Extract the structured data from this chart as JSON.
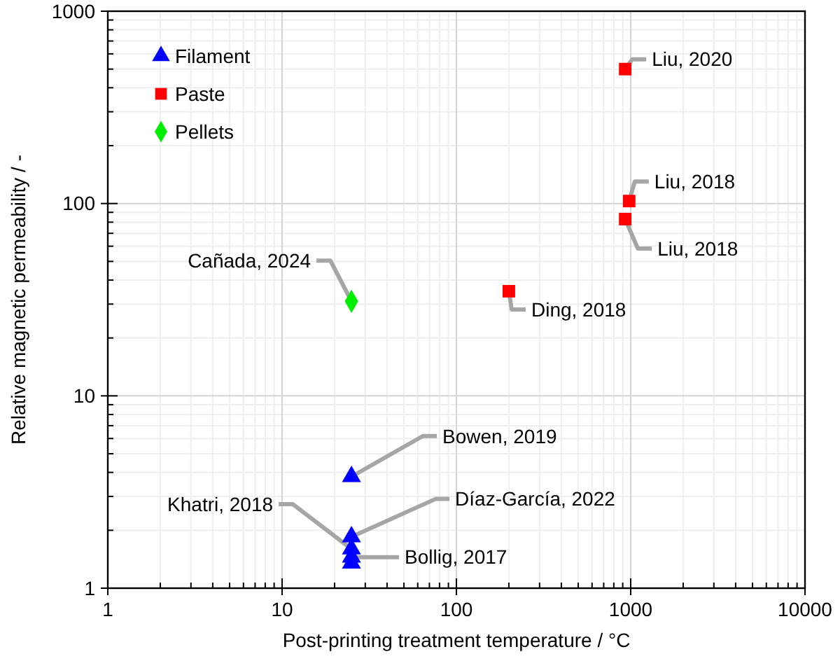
{
  "chart_data": {
    "type": "scatter",
    "xlabel": "Post-printing treatment temperature / °C",
    "ylabel": "Relative magnetic permeability / -",
    "log": "xy",
    "grid": true,
    "legend": "top left",
    "xlim": [
      1,
      10000
    ],
    "xticks": [
      1,
      10,
      100,
      1000,
      10000
    ],
    "ylim": [
      1,
      1000
    ],
    "yticks": [
      1,
      10,
      100,
      1000
    ],
    "series": [
      {
        "name": "Filament",
        "color": "#0000ff",
        "marker": "triangle",
        "x": [
          25,
          25,
          25,
          25,
          25
        ],
        "values": [
          3.8,
          1.85,
          1.6,
          1.45,
          1.35
        ]
      },
      {
        "name": "Paste",
        "color": "#ff0000",
        "marker": "square",
        "x": [
          930,
          980,
          930,
          200
        ],
        "values": [
          500,
          103,
          83,
          35
        ]
      },
      {
        "name": "Pellets",
        "color": "#00ee00",
        "marker": "diamond",
        "x": [
          25
        ],
        "values": [
          31
        ]
      }
    ],
    "annotations": [
      {
        "text": "Liu, 2020",
        "x": 930,
        "y": 500
      },
      {
        "text": "Liu, 2018",
        "x": 980,
        "y": 103
      },
      {
        "text": "Liu, 2018",
        "x": 930,
        "y": 83
      },
      {
        "text": "Ding, 2018",
        "x": 200,
        "y": 35
      },
      {
        "text": "Cañada, 2024",
        "x": 25,
        "y": 31
      },
      {
        "text": "Bowen, 2019",
        "x": 25,
        "y": 3.8
      },
      {
        "text": "Díaz-García, 2022",
        "x": 25,
        "y": 1.85
      },
      {
        "text": "Khatri, 2018",
        "x": 25,
        "y": 1.6
      },
      {
        "text": "Bollig, 2017",
        "x": 25,
        "y": 1.45
      }
    ]
  }
}
